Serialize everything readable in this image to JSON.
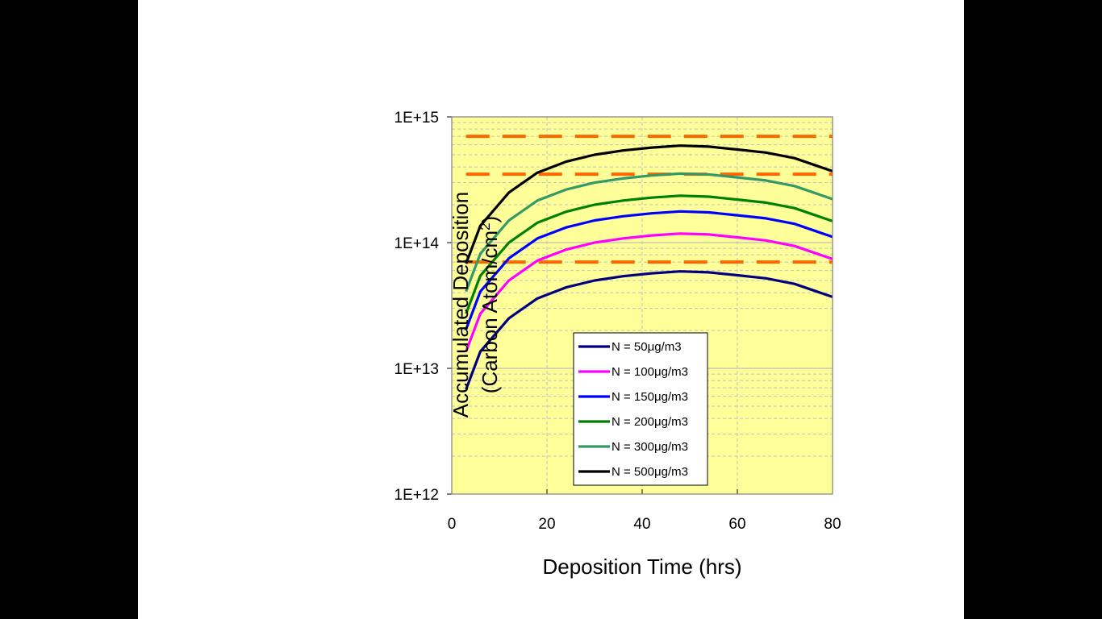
{
  "chart_data": {
    "type": "line",
    "title": "",
    "xlabel": "Deposition Time (hrs)",
    "ylabel_line1": "Accumulated Deposition",
    "ylabel_line2_prefix": "(Carbon Atom/cm",
    "ylabel_line2_sup": "2",
    "ylabel_line2_suffix": ")",
    "yscale": "log",
    "xlim": [
      0,
      80
    ],
    "ylim": [
      1000000000000.0,
      1000000000000000.0
    ],
    "x_ticks": [
      0,
      20,
      40,
      60,
      80
    ],
    "x_tick_labels": [
      "0",
      "20",
      "40",
      "60",
      "80"
    ],
    "y_ticks": [
      1000000000000.0,
      10000000000000.0,
      100000000000000.0,
      1000000000000000.0
    ],
    "y_tick_labels": [
      "1E+12",
      "1E+13",
      "1E+14",
      "1E+15"
    ],
    "grid": true,
    "plot_background": "#FFFF99",
    "legend_position": "bottom-center",
    "x": [
      3,
      6,
      12,
      18,
      24,
      30,
      36,
      42,
      48,
      54,
      60,
      66,
      72,
      80
    ],
    "series": [
      {
        "name": "N = 50μg/m3",
        "color": "#000080",
        "values": [
          6800000000000.0,
          13600000000000.0,
          25000000000000.0,
          36000000000000.0,
          44000000000000.0,
          50000000000000.0,
          54000000000000.0,
          57000000000000.0,
          59000000000000.0,
          58000000000000.0,
          55000000000000.0,
          52000000000000.0,
          47000000000000.0,
          37000000000000.0
        ]
      },
      {
        "name": "N = 100μg/m3",
        "color": "#FF00FF",
        "values": [
          13600000000000.0,
          27200000000000.0,
          50000000000000.0,
          72000000000000.0,
          88000000000000.0,
          100000000000000.0,
          108000000000000.0,
          114000000000000.0,
          118000000000000.0,
          116000000000000.0,
          110000000000000.0,
          104000000000000.0,
          94000000000000.0,
          74000000000000.0
        ]
      },
      {
        "name": "N = 150μg/m3",
        "color": "#0000FF",
        "values": [
          20400000000000.0,
          40800000000000.0,
          75000000000000.0,
          108000000000000.0,
          132000000000000.0,
          150000000000000.0,
          162000000000000.0,
          171000000000000.0,
          177000000000000.0,
          174000000000000.0,
          165000000000000.0,
          156000000000000.0,
          141000000000000.0,
          111000000000000.0
        ]
      },
      {
        "name": "N = 200μg/m3",
        "color": "#008000",
        "values": [
          27200000000000.0,
          54400000000000.0,
          100000000000000.0,
          144000000000000.0,
          176000000000000.0,
          200000000000000.0,
          216000000000000.0,
          228000000000000.0,
          236000000000000.0,
          232000000000000.0,
          220000000000000.0,
          208000000000000.0,
          188000000000000.0,
          148000000000000.0
        ]
      },
      {
        "name": "N = 300μg/m3",
        "color": "#339966",
        "values": [
          40800000000000.0,
          81600000000000.0,
          150000000000000.0,
          216000000000000.0,
          264000000000000.0,
          300000000000000.0,
          324000000000000.0,
          342000000000000.0,
          354000000000000.0,
          348000000000000.0,
          330000000000000.0,
          312000000000000.0,
          282000000000000.0,
          222000000000000.0
        ]
      },
      {
        "name": "N = 500μg/m3",
        "color": "#000000",
        "values": [
          68000000000000.0,
          136000000000000.0,
          250000000000000.0,
          360000000000000.0,
          440000000000000.0,
          500000000000000.0,
          540000000000000.0,
          570000000000000.0,
          590000000000000.0,
          580000000000000.0,
          550000000000000.0,
          520000000000000.0,
          470000000000000.0,
          370000000000000.0
        ]
      }
    ],
    "reference_lines": [
      {
        "y": 700000000000000.0,
        "x_start": 3,
        "x_end": 80,
        "color": "#FF6600",
        "style": "dashed"
      },
      {
        "y": 350000000000000.0,
        "x_start": 3,
        "x_end": 80,
        "color": "#FF6600",
        "style": "dashed"
      },
      {
        "y": 70000000000000.0,
        "x_start": 3,
        "x_end": 80,
        "color": "#FF6600",
        "style": "dashed"
      }
    ]
  }
}
